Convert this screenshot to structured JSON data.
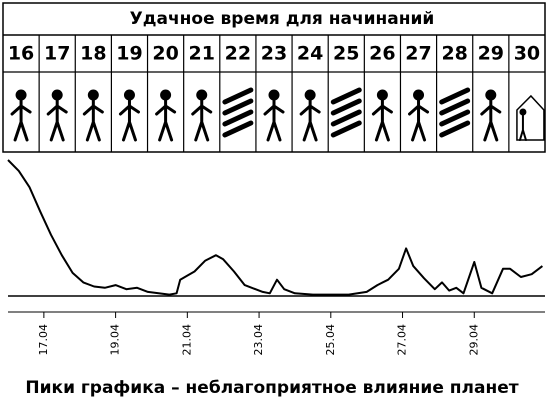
{
  "header": {
    "title": "Удачное время для начинаний"
  },
  "days": [
    16,
    17,
    18,
    19,
    20,
    21,
    22,
    23,
    24,
    25,
    26,
    27,
    28,
    29,
    30
  ],
  "chart_data": {
    "type": "line",
    "color": "#000000",
    "x": [
      16.0,
      16.3,
      16.6,
      16.9,
      17.2,
      17.5,
      17.8,
      18.1,
      18.4,
      18.7,
      19.0,
      19.3,
      19.6,
      19.9,
      20.2,
      20.5,
      20.7,
      20.8,
      21.0,
      21.2,
      21.5,
      21.8,
      22.0,
      22.3,
      22.6,
      22.9,
      23.1,
      23.3,
      23.5,
      23.7,
      24.0,
      24.5,
      25.0,
      25.5,
      26.0,
      26.3,
      26.6,
      26.9,
      27.1,
      27.3,
      27.6,
      27.9,
      28.1,
      28.3,
      28.5,
      28.7,
      29.0,
      29.2,
      29.5,
      29.8,
      30.0,
      30.3,
      30.6,
      30.9
    ],
    "values": [
      100,
      92,
      80,
      62,
      45,
      30,
      17,
      10,
      7,
      6,
      8,
      5,
      6,
      3,
      2,
      1,
      2,
      12,
      15,
      18,
      26,
      30,
      27,
      18,
      8,
      5,
      3,
      2,
      12,
      5,
      2,
      1,
      1,
      1,
      3,
      8,
      12,
      20,
      35,
      22,
      13,
      5,
      10,
      4,
      6,
      2,
      25,
      6,
      2,
      20,
      20,
      14,
      16,
      22
    ],
    "xlim": [
      16,
      31
    ],
    "ylim": [
      0,
      100
    ],
    "xticks": [
      {
        "value": 17,
        "label": "17.04"
      },
      {
        "value": 19,
        "label": "19.04"
      },
      {
        "value": 21,
        "label": "21.04"
      },
      {
        "value": 23,
        "label": "23.04"
      },
      {
        "value": 25,
        "label": "25.04"
      },
      {
        "value": 27,
        "label": "27.04"
      },
      {
        "value": 29,
        "label": "29.04"
      }
    ]
  },
  "caption": "Пики графика – неблагоприятное влияние планет"
}
